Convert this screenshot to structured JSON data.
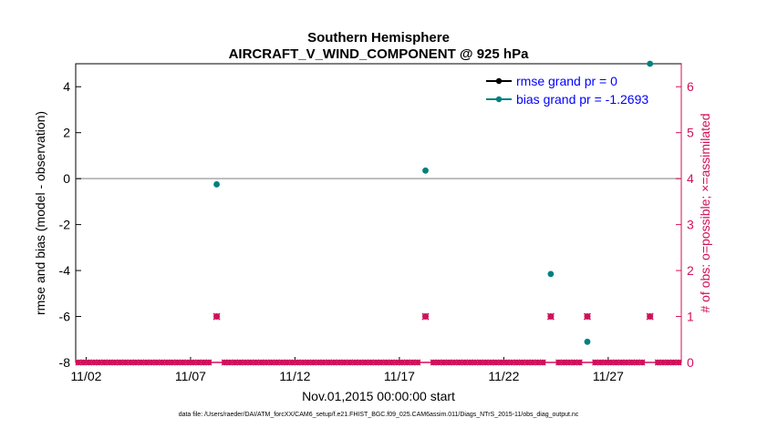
{
  "chart_data": {
    "type": "scatter",
    "title": [
      "Southern Hemisphere",
      "AIRCRAFT_V_WIND_COMPONENT @ 925 hPa"
    ],
    "xlabel": "Nov.01,2015 00:00:00 start",
    "ylabel_left": "rmse and bias (model - observation)",
    "ylabel_right": "# of obs: o=possible; ×=assimilated",
    "footnote": "data file: /Users/raeder/DAI/ATM_forcXX/CAM6_setup/f.e21.FHIST_BGC.f09_025.CAM6assim.011/Diags_NTrS_2015-11/obs_diag_output.nc",
    "x_ticks": [
      "11/02",
      "11/07",
      "11/12",
      "11/17",
      "11/22",
      "11/27"
    ],
    "x_tick_days": [
      2,
      7,
      12,
      17,
      22,
      27
    ],
    "xlim": [
      1.5,
      30.5
    ],
    "ylim_left": [
      -8,
      5
    ],
    "yticks_left": [
      -8,
      -6,
      -4,
      -2,
      0,
      2,
      4
    ],
    "ylim_right": [
      0,
      6.5
    ],
    "yticks_right": [
      0,
      1,
      2,
      3,
      4,
      5,
      6
    ],
    "grid": false,
    "legend_position": "top-right",
    "series": [
      {
        "name": "rmse grand pr = 0",
        "axis": "left",
        "color": "#000000",
        "points": []
      },
      {
        "name": "bias grand pr = -1.2693",
        "axis": "left",
        "color": "#008080",
        "points": [
          {
            "day": 8.25,
            "value": -0.25
          },
          {
            "day": 18.25,
            "value": 0.35
          },
          {
            "day": 24.25,
            "value": -4.15
          },
          {
            "day": 26.0,
            "value": -7.1
          },
          {
            "day": 29.0,
            "value": 5.0
          }
        ]
      },
      {
        "name": "obs possible",
        "axis": "right",
        "color": "#d0105a",
        "marker": "circle",
        "points": [
          {
            "day": 8.25,
            "value": 1
          },
          {
            "day": 18.25,
            "value": 1
          },
          {
            "day": 24.25,
            "value": 1
          },
          {
            "day": 26.0,
            "value": 1
          },
          {
            "day": 29.0,
            "value": 1
          }
        ]
      },
      {
        "name": "obs assimilated",
        "axis": "right",
        "color": "#d0105a",
        "marker": "cross",
        "points": [
          {
            "day": 8.25,
            "value": 1
          },
          {
            "day": 18.25,
            "value": 1
          },
          {
            "day": 24.25,
            "value": 1
          },
          {
            "day": 26.0,
            "value": 1
          },
          {
            "day": 29.0,
            "value": 1
          }
        ]
      }
    ],
    "zero_obs_marker_interval_days": 0.25,
    "zero_obs_days_range": [
      1.5,
      30.5
    ]
  }
}
